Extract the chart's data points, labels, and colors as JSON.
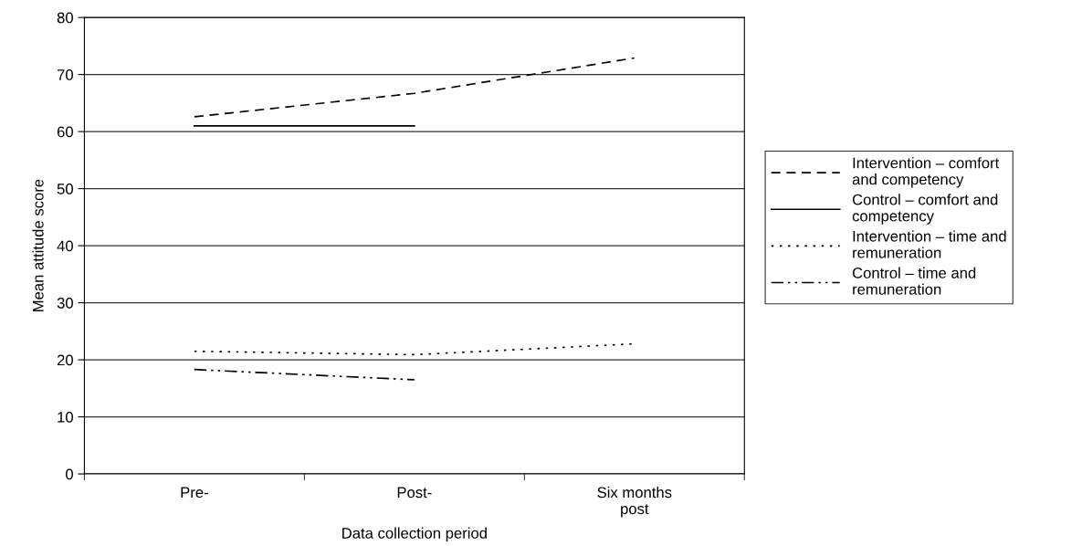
{
  "chart_data": {
    "type": "line",
    "xlabel": "Data collection period",
    "ylabel": "Mean attitude score",
    "categories": [
      "Pre-",
      "Post-",
      "Six months\npost"
    ],
    "series": [
      {
        "name": "Intervention – comfort\nand competency",
        "color": "#000000",
        "line_style": "dashed",
        "values": [
          62.6,
          66.7,
          72.9
        ]
      },
      {
        "name": "Control – comfort and\ncompetency",
        "color": "#000000",
        "line_style": "solid",
        "values": [
          61.0,
          61.0,
          null
        ]
      },
      {
        "name": "Intervention – time and\nremuneration",
        "color": "#000000",
        "line_style": "dotted",
        "values": [
          21.5,
          20.9,
          22.8
        ]
      },
      {
        "name": "Control – time and\nremuneration",
        "color": "#000000",
        "line_style": "dashdot",
        "values": [
          18.3,
          16.5,
          null
        ]
      }
    ],
    "ylim": [
      0,
      80
    ],
    "yticks": [
      0,
      10,
      20,
      30,
      40,
      50,
      60,
      70,
      80
    ],
    "grid": "y",
    "legend": "right",
    "marker": "none"
  }
}
